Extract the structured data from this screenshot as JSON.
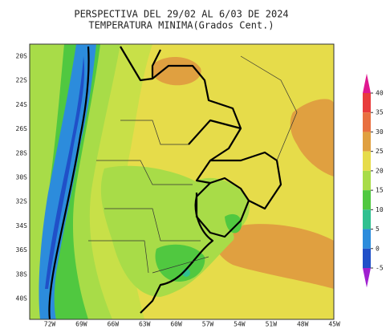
{
  "header": {
    "title": "PERSPECTIVA DEL 29/02 AL 6/03 DE 2024",
    "subtitle": "TEMPERATURA MINIMA(Grados Cent.)"
  },
  "map": {
    "lat_labels": [
      "20S",
      "22S",
      "24S",
      "26S",
      "28S",
      "30S",
      "32S",
      "34S",
      "36S",
      "38S",
      "40S"
    ],
    "lon_labels": [
      "72W",
      "69W",
      "66W",
      "63W",
      "60W",
      "57W",
      "54W",
      "51W",
      "48W",
      "45W"
    ]
  },
  "colorbar": {
    "levels": [
      40,
      35,
      30,
      25,
      20,
      15,
      10,
      5,
      0,
      -5
    ],
    "colors": [
      "#e01890",
      "#e83c3c",
      "#e87040",
      "#e0a040",
      "#e6dc4a",
      "#a8dc48",
      "#50c840",
      "#30c090",
      "#2c8cdc",
      "#2050c8",
      "#a020d0"
    ]
  }
}
